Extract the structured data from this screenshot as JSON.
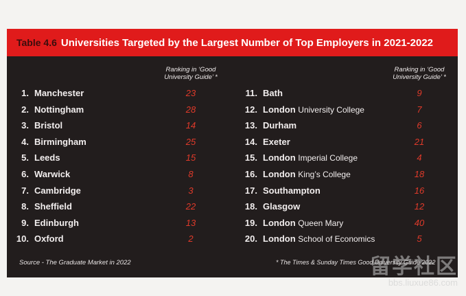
{
  "title": {
    "tag": "Table 4.6",
    "text": "Universities Targeted by the Largest Number of Top Employers in 2021-2022"
  },
  "column_header": "Ranking in ‘Good University Guide’ *",
  "left_rows": [
    {
      "num": "1.",
      "name": "Manchester",
      "sub": "",
      "rank": "23"
    },
    {
      "num": "2.",
      "name": "Nottingham",
      "sub": "",
      "rank": "28"
    },
    {
      "num": "3.",
      "name": "Bristol",
      "sub": "",
      "rank": "14"
    },
    {
      "num": "4.",
      "name": "Birmingham",
      "sub": "",
      "rank": "25"
    },
    {
      "num": "5.",
      "name": "Leeds",
      "sub": "",
      "rank": "15"
    },
    {
      "num": "6.",
      "name": "Warwick",
      "sub": "",
      "rank": "8"
    },
    {
      "num": "7.",
      "name": "Cambridge",
      "sub": "",
      "rank": "3"
    },
    {
      "num": "8.",
      "name": "Sheffield",
      "sub": "",
      "rank": "22"
    },
    {
      "num": "9.",
      "name": "Edinburgh",
      "sub": "",
      "rank": "13"
    },
    {
      "num": "10.",
      "name": "Oxford",
      "sub": "",
      "rank": "2"
    }
  ],
  "right_rows": [
    {
      "num": "11.",
      "name": "Bath",
      "sub": "",
      "rank": "9"
    },
    {
      "num": "12.",
      "name": "London",
      "sub": "University College",
      "rank": "7"
    },
    {
      "num": "13.",
      "name": "Durham",
      "sub": "",
      "rank": "6"
    },
    {
      "num": "14.",
      "name": "Exeter",
      "sub": "",
      "rank": "21"
    },
    {
      "num": "15.",
      "name": "London",
      "sub": "Imperial College",
      "rank": "4"
    },
    {
      "num": "16.",
      "name": "London",
      "sub": "King’s College",
      "rank": "18"
    },
    {
      "num": "17.",
      "name": "Southampton",
      "sub": "",
      "rank": "16"
    },
    {
      "num": "18.",
      "name": "Glasgow",
      "sub": "",
      "rank": "12"
    },
    {
      "num": "19.",
      "name": "London",
      "sub": "Queen Mary",
      "rank": "40"
    },
    {
      "num": "20.",
      "name": "London",
      "sub": "School of Economics",
      "rank": "5"
    }
  ],
  "source": "Source - The Graduate Market in 2022",
  "footnote": "* The Times & Sunday Times Good University Guide 2022",
  "watermark": {
    "cn": "留学社区",
    "url": "bbs.liuxue86.com"
  }
}
